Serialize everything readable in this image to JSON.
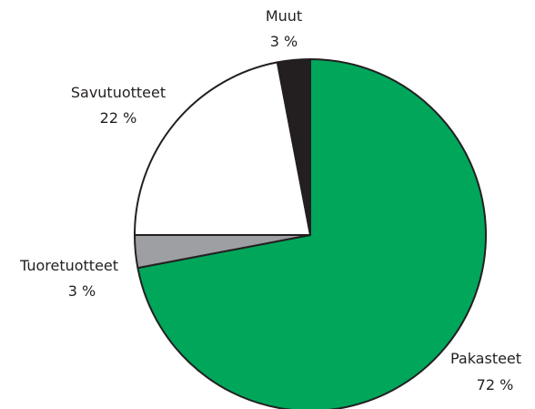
{
  "chart_data": {
    "type": "pie",
    "title": "",
    "start_angle_deg": 0,
    "direction": "clockwise",
    "slices": [
      {
        "name": "Pakasteet",
        "value": 72,
        "value_label": "72 %",
        "color": "#00a65a"
      },
      {
        "name": "Tuoretuotteet",
        "value": 3,
        "value_label": "3 %",
        "color": "#9d9fa2"
      },
      {
        "name": "Savutuotteet",
        "value": 22,
        "value_label": "22 %",
        "color": "#ffffff"
      },
      {
        "name": "Muut",
        "value": 3,
        "value_label": "3 %",
        "color": "#231f20"
      }
    ],
    "border_color": "#231f20",
    "legend": "none"
  }
}
